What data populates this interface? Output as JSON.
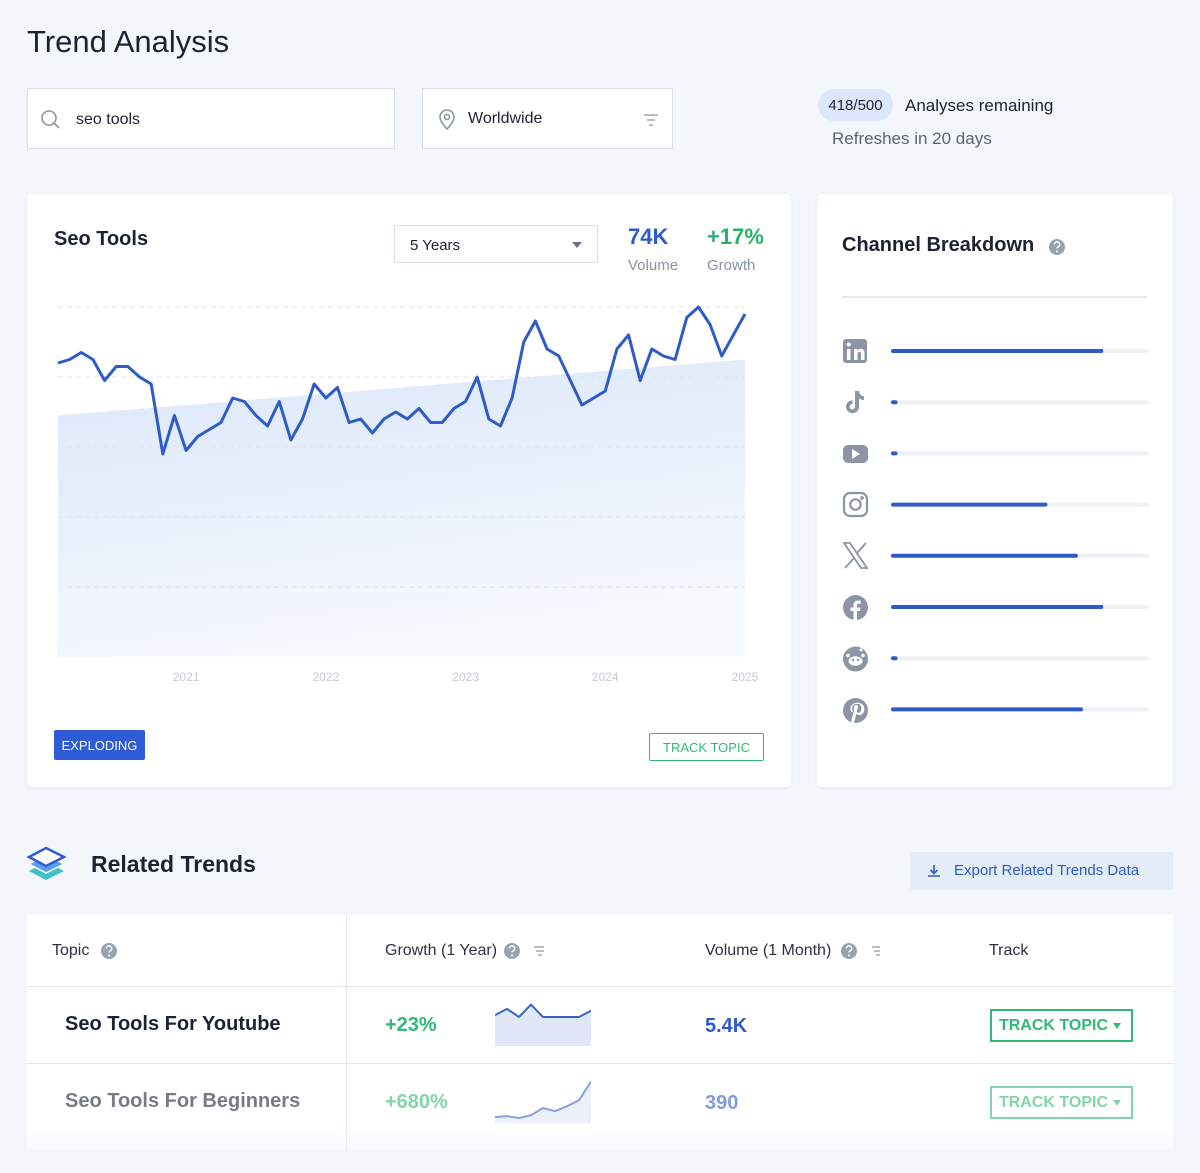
{
  "header": {
    "title": "Trend Analysis",
    "search": "seo tools",
    "location": "Worldwide",
    "quota": "418/500",
    "quota_label": "Analyses remaining",
    "refresh": "Refreshes in 20 days"
  },
  "chart_data": [
    {
      "type": "line",
      "title": "Seo Tools",
      "period": "5 Years",
      "volume": "74K",
      "volume_label": "Volume",
      "growth": "+17%",
      "growth_label": "Growth",
      "status": "EXPLODING",
      "action": "TRACK TOPIC",
      "categories": [
        null,
        null,
        null,
        null,
        null,
        null,
        null,
        null,
        null,
        null,
        null,
        "2021",
        null,
        null,
        null,
        null,
        null,
        null,
        null,
        null,
        null,
        null,
        null,
        "2022",
        null,
        null,
        null,
        null,
        null,
        null,
        null,
        null,
        null,
        null,
        null,
        "2023",
        null,
        null,
        null,
        null,
        null,
        null,
        null,
        null,
        null,
        null,
        null,
        "2024",
        null,
        null,
        null,
        null,
        null,
        null,
        null,
        null,
        null,
        null,
        null,
        "2025"
      ],
      "values": [
        84,
        85,
        87,
        85,
        79,
        83,
        83,
        80,
        78,
        58,
        69,
        59,
        63,
        65,
        67,
        74,
        73,
        69,
        66,
        73,
        62,
        68,
        78,
        74,
        77,
        67,
        68,
        64,
        68,
        70,
        68,
        71,
        67,
        67,
        71,
        73,
        80,
        68,
        66,
        74,
        90,
        96,
        88,
        86,
        79,
        72,
        74,
        76,
        88,
        92,
        79,
        88,
        86,
        85,
        97,
        100,
        95,
        86,
        92,
        98
      ],
      "color": "#2f5bc8",
      "ylim": [
        0,
        100
      ],
      "yticks": [
        20,
        40,
        60,
        80,
        100
      ],
      "grid": true,
      "trend": [
        69,
        85
      ]
    },
    {
      "type": "bar",
      "title": "Channel Breakdown",
      "values": [
        82,
        1,
        1,
        60,
        72,
        82,
        1,
        74
      ],
      "xlim": [
        0,
        100
      ],
      "color": "#2f5bc8"
    }
  ],
  "related": {
    "title": "Related Trends",
    "export": "Export Related Trends Data",
    "columns": [
      "Topic",
      "Growth (1 Year)",
      "Volume (1 Month)",
      "Track"
    ],
    "rows": [
      {
        "topic": "Seo Tools For Youtube",
        "growth": "+23%",
        "volume": "5.4K",
        "track": "TRACK TOPIC",
        "sparkline": [
          65,
          78,
          61,
          87,
          61,
          61,
          61,
          61,
          74
        ]
      },
      {
        "topic": "Seo Tools For Beginners",
        "growth": "+680%",
        "volume": "390",
        "track": "TRACK TOPIC",
        "sparkline": [
          13,
          15,
          11,
          17,
          33,
          26,
          37,
          50,
          91
        ]
      }
    ]
  }
}
